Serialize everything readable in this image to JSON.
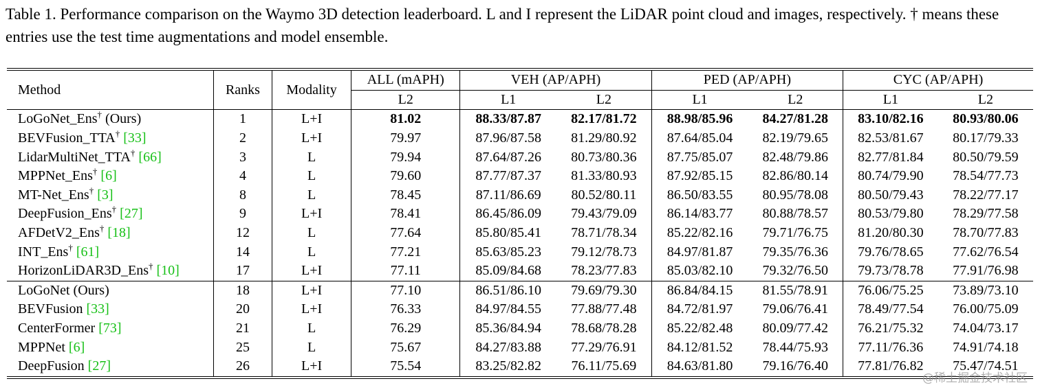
{
  "caption": "Table 1.  Performance comparison on the Waymo 3D detection leaderboard.  L and I represent the LiDAR point cloud and images, respectively. † means these entries use the test time augmentations and model ensemble.",
  "table": {
    "header": {
      "method": "Method",
      "ranks": "Ranks",
      "modality": "Modality",
      "groups": [
        {
          "label": "ALL (mAPH)",
          "sub": [
            "L2"
          ]
        },
        {
          "label": "VEH (AP/APH)",
          "sub": [
            "L1",
            "L2"
          ]
        },
        {
          "label": "PED (AP/APH)",
          "sub": [
            "L1",
            "L2"
          ]
        },
        {
          "label": "CYC (AP/APH)",
          "sub": [
            "L1",
            "L2"
          ]
        }
      ]
    },
    "groups": [
      [
        {
          "method": {
            "name": "LoGoNet_Ens",
            "dagger": "†",
            "suffix": " (Ours)"
          },
          "bold": true,
          "cells": [
            "1",
            "L+I",
            "81.02",
            "88.33/87.87",
            "82.17/81.72",
            "88.98/85.96",
            "84.27/81.28",
            "83.10/82.16",
            "80.93/80.06"
          ]
        },
        {
          "method": {
            "name": "BEVFusion_TTA",
            "dagger": "†",
            "cite": "[33]"
          },
          "cells": [
            "2",
            "L+I",
            "79.97",
            "87.96/87.58",
            "81.29/80.92",
            "87.64/85.04",
            "82.19/79.65",
            "82.53/81.67",
            "80.17/79.33"
          ]
        },
        {
          "method": {
            "name": "LidarMultiNet_TTA",
            "dagger": "†",
            "cite": "[66]"
          },
          "cells": [
            "3",
            "L",
            "79.94",
            "87.64/87.26",
            "80.73/80.36",
            "87.75/85.07",
            "82.48/79.86",
            "82.77/81.84",
            "80.50/79.59"
          ]
        },
        {
          "method": {
            "name": "MPPNet_Ens",
            "dagger": "†",
            "cite": "[6]"
          },
          "cells": [
            "4",
            "L",
            "79.60",
            "87.77/87.37",
            "81.33/80.93",
            "87.92/85.15",
            "82.86/80.14",
            "80.74/79.90",
            "78.54/77.73"
          ]
        },
        {
          "method": {
            "name": "MT-Net_Ens",
            "dagger": "†",
            "cite": "[3]"
          },
          "cells": [
            "8",
            "L",
            "78.45",
            "87.11/86.69",
            "80.52/80.11",
            "86.50/83.55",
            "80.95/78.08",
            "80.50/79.43",
            "78.22/77.17"
          ]
        },
        {
          "method": {
            "name": "DeepFusion_Ens",
            "dagger": "†",
            "cite": "[27]"
          },
          "cells": [
            "9",
            "L+I",
            "78.41",
            "86.45/86.09",
            "79.43/79.09",
            "86.14/83.77",
            "80.88/78.57",
            "80.53/79.80",
            "78.29/77.58"
          ]
        },
        {
          "method": {
            "name": "AFDetV2_Ens",
            "dagger": "†",
            "cite": "[18]"
          },
          "cells": [
            "12",
            "L",
            "77.64",
            "85.80/85.41",
            "78.71/78.34",
            "85.22/82.16",
            "79.71/76.75",
            "81.20/80.30",
            "78.70/77.83"
          ]
        },
        {
          "method": {
            "name": "INT_Ens",
            "dagger": "†",
            "cite": "[61]"
          },
          "cells": [
            "14",
            "L",
            "77.21",
            "85.63/85.23",
            "79.12/78.73",
            "84.97/81.87",
            "79.35/76.36",
            "79.76/78.65",
            "77.62/76.54"
          ]
        },
        {
          "method": {
            "name": "HorizonLiDAR3D_Ens",
            "dagger": "†",
            "cite": "[10]"
          },
          "cells": [
            "17",
            "L+I",
            "77.11",
            "85.09/84.68",
            "78.23/77.83",
            "85.03/82.10",
            "79.32/76.50",
            "79.73/78.78",
            "77.91/76.98"
          ]
        }
      ],
      [
        {
          "method": {
            "name": "LoGoNet (Ours)"
          },
          "cells": [
            "18",
            "L+I",
            "77.10",
            "86.51/86.10",
            "79.69/79.30",
            "86.84/84.15",
            "81.55/78.91",
            "76.06/75.25",
            "73.89/73.10"
          ]
        },
        {
          "method": {
            "name": "BEVFusion",
            "cite": "[33]"
          },
          "cells": [
            "20",
            "L+I",
            "76.33",
            "84.97/84.55",
            "77.88/77.48",
            "84.72/81.97",
            "79.06/76.41",
            "78.49/77.54",
            "76.00/75.09"
          ]
        },
        {
          "method": {
            "name": "CenterFormer",
            "cite": "[73]"
          },
          "cells": [
            "21",
            "L",
            "76.29",
            "85.36/84.94",
            "78.68/78.28",
            "85.22/82.48",
            "80.09/77.42",
            "76.21/75.32",
            "74.04/73.17"
          ]
        },
        {
          "method": {
            "name": "MPPNet",
            "cite": "[6]"
          },
          "cells": [
            "25",
            "L",
            "75.67",
            "84.27/83.88",
            "77.29/76.91",
            "84.12/81.52",
            "78.44/75.93",
            "77.11/76.36",
            "74.91/74.18"
          ]
        },
        {
          "method": {
            "name": "DeepFusion",
            "cite": "[27]"
          },
          "cells": [
            "26",
            "L+I",
            "75.54",
            "83.25/82.82",
            "76.11/75.69",
            "84.63/81.80",
            "79.16/76.40",
            "77.81/76.82",
            "75.47/74.51"
          ]
        }
      ]
    ]
  },
  "watermark": "@稀土掘金技术社区"
}
